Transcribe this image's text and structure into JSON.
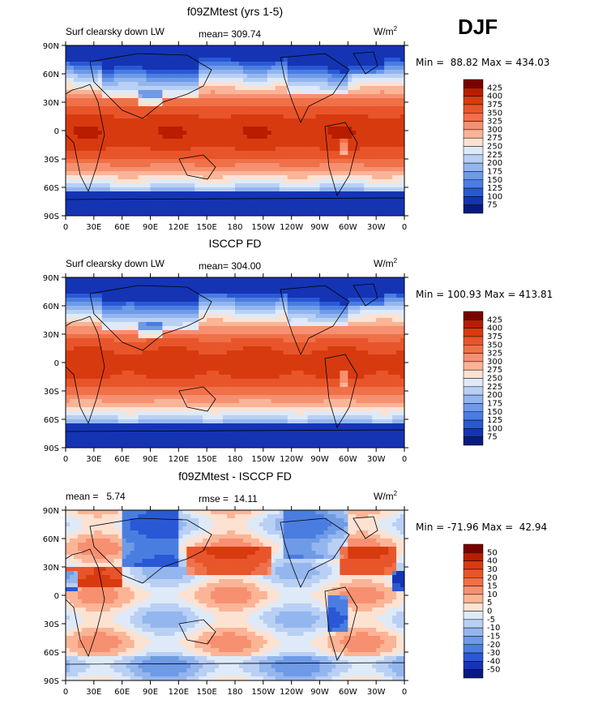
{
  "season": "DJF",
  "units_text": "W/m",
  "units_sup": "2",
  "panels": [
    {
      "title": "f09ZMtest (yrs 1-5)",
      "left_label": "Surf clearsky down LW",
      "stat_label": "mean= 309.74",
      "stat2_label": "",
      "minmax": "Min =  88.82 Max = 434.03",
      "type": "absolute"
    },
    {
      "title": "ISCCP FD",
      "left_label": "Surf clearsky down LW",
      "stat_label": "mean= 304.00",
      "stat2_label": "",
      "minmax": "Min = 100.93 Max = 413.81",
      "type": "absolute"
    },
    {
      "title": "f09ZMtest - ISCCP FD",
      "left_label": "mean =   5.74",
      "stat_label": "rmse =  14.11",
      "stat2_label": "",
      "minmax": "Min = -71.96 Max =  42.94",
      "type": "difference"
    }
  ],
  "lat_ticks": [
    "90N",
    "60N",
    "30N",
    "0",
    "30S",
    "60S",
    "90S"
  ],
  "lon_ticks": [
    "0",
    "30E",
    "60E",
    "90E",
    "120E",
    "150E",
    "180",
    "150W",
    "120W",
    "90W",
    "60W",
    "30W",
    "0"
  ],
  "colorbar_abs": {
    "labels": [
      "425",
      "400",
      "375",
      "350",
      "325",
      "300",
      "275",
      "250",
      "225",
      "200",
      "175",
      "150",
      "125",
      "100",
      "75"
    ],
    "colors": [
      "#7a0000",
      "#b81d00",
      "#d83a10",
      "#e8552a",
      "#f07048",
      "#f79070",
      "#fbb496",
      "#fde2d2",
      "#dfeaf8",
      "#b9d0f4",
      "#94b6ee",
      "#6e9ae6",
      "#4a7de0",
      "#2a58d4",
      "#1434b4",
      "#081a80"
    ]
  },
  "colorbar_diff": {
    "labels": [
      "50",
      "40",
      "30",
      "20",
      "15",
      "10",
      "5",
      "0",
      "-5",
      "-10",
      "-15",
      "-20",
      "-30",
      "-40",
      "-50"
    ],
    "colors": [
      "#7a0000",
      "#b81d00",
      "#d83a10",
      "#e8552a",
      "#f07048",
      "#f79070",
      "#fbb496",
      "#fde2d2",
      "#dfeaf8",
      "#b9d0f4",
      "#94b6ee",
      "#6e9ae6",
      "#4a7de0",
      "#2a58d4",
      "#1434b4",
      "#081a80"
    ]
  }
}
